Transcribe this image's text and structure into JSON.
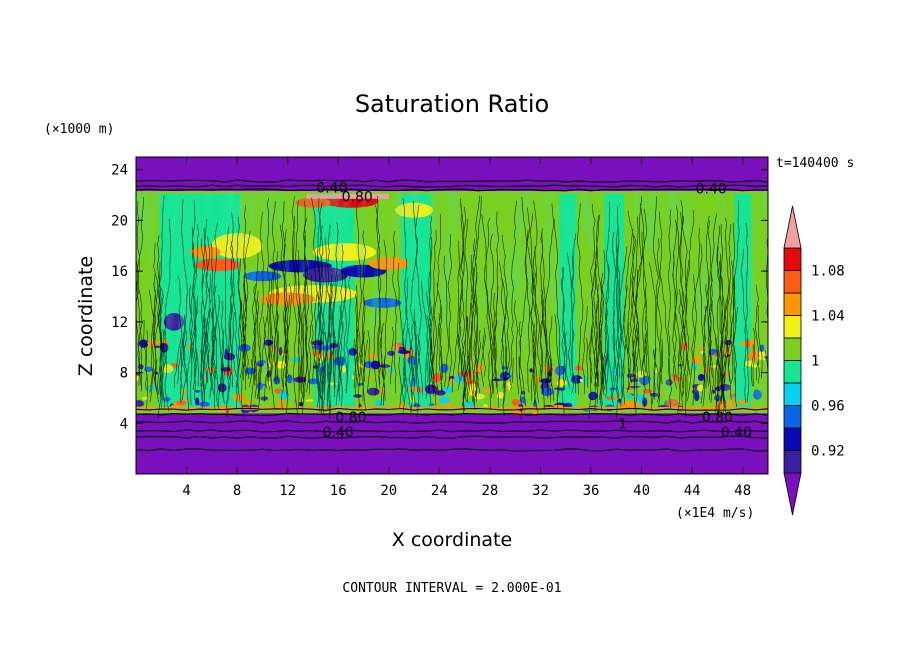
{
  "chart_data": {
    "type": "heatmap",
    "title": "Saturation Ratio",
    "xlabel": "X coordinate",
    "ylabel": "Z coordinate",
    "x_unit_label": "(×1E4 m/s)",
    "y_unit_label": "(×1000 m)",
    "time_label": "t=140400 s",
    "footer": "CONTOUR INTERVAL = 2.000E-01",
    "xlim": [
      0,
      50
    ],
    "ylim": [
      0,
      25
    ],
    "x_ticks": [
      4,
      8,
      12,
      16,
      20,
      24,
      28,
      32,
      36,
      40,
      44,
      48
    ],
    "y_ticks": [
      4,
      8,
      12,
      16,
      20,
      24
    ],
    "colorbar": {
      "levels": [
        0.9,
        0.92,
        0.94,
        0.96,
        0.98,
        1.0,
        1.02,
        1.04,
        1.06,
        1.08,
        1.1
      ],
      "tick_labels": [
        "0.92",
        "0.96",
        "1",
        "1.04",
        "1.08"
      ],
      "tick_values": [
        0.92,
        0.96,
        1.0,
        1.04,
        1.08
      ],
      "colors": [
        "#3c1ea0",
        "#0a0ab4",
        "#0a64e6",
        "#00d2f0",
        "#14e696",
        "#7ad01e",
        "#f0f014",
        "#ff9600",
        "#ff5a14",
        "#e60a0a"
      ],
      "under_color": "#7a0fbe",
      "over_color": "#f0a0a0"
    },
    "regions": [
      {
        "name": "upper-dry-layer",
        "z_from": 22.3,
        "z_to": 25,
        "value": "below 0.90"
      },
      {
        "name": "lower-dry-layer",
        "z_from": 0,
        "z_to": 4.8,
        "value": "below 0.90"
      },
      {
        "name": "moist-column",
        "z_from": 4.8,
        "z_to": 22.3,
        "value": "about 0.98 to 1.02"
      }
    ],
    "contour_labels": [
      {
        "text": "0.40",
        "x": 15.5,
        "z": 22.6
      },
      {
        "text": "0.80",
        "x": 17.5,
        "z": 21.9
      },
      {
        "text": "0.40",
        "x": 45.5,
        "z": 22.5
      },
      {
        "text": "0.80",
        "x": 17,
        "z": 4.5
      },
      {
        "text": "0.40",
        "x": 16,
        "z": 3.3
      },
      {
        "text": "1",
        "x": 38.5,
        "z": 4.0
      },
      {
        "text": "0.80",
        "x": 46,
        "z": 4.5
      },
      {
        "text": "0.40",
        "x": 47.5,
        "z": 3.3
      }
    ]
  }
}
